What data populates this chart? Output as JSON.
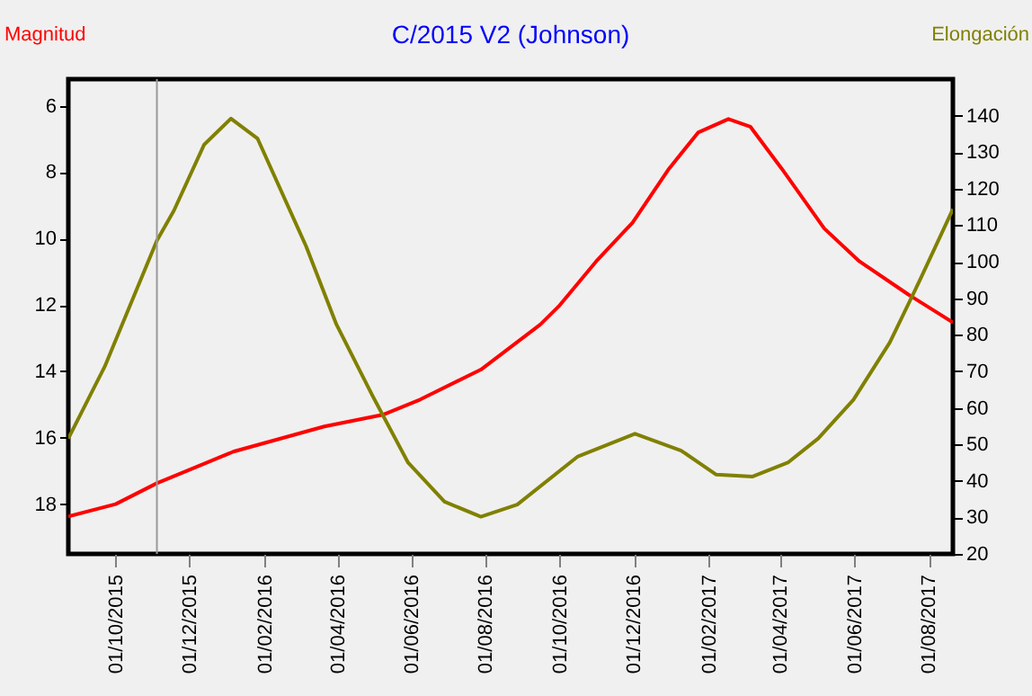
{
  "chart_data": {
    "type": "line",
    "title": "C/2015 V2 (Johnson)",
    "ylabel": "Magnitud",
    "y2label": "Elongación",
    "xlim": [
      "2015-08-23",
      "2017-08-21"
    ],
    "xticks": [
      {
        "value": "2015-10-01",
        "label": "01/10/2015"
      },
      {
        "value": "2015-12-01",
        "label": "01/12/2015"
      },
      {
        "value": "2016-02-01",
        "label": "01/02/2016"
      },
      {
        "value": "2016-04-01",
        "label": "01/04/2016"
      },
      {
        "value": "2016-06-01",
        "label": "01/06/2016"
      },
      {
        "value": "2016-08-01",
        "label": "01/08/2016"
      },
      {
        "value": "2016-10-01",
        "label": "01/10/2016"
      },
      {
        "value": "2016-12-01",
        "label": "01/12/2016"
      },
      {
        "value": "2017-02-01",
        "label": "01/02/2017"
      },
      {
        "value": "2017-04-01",
        "label": "01/04/2017"
      },
      {
        "value": "2017-06-01",
        "label": "01/06/2017"
      },
      {
        "value": "2017-08-01",
        "label": "01/08/2017"
      }
    ],
    "ylim": [
      19.5,
      5.2
    ],
    "yticks": [
      6,
      8,
      10,
      12,
      14,
      16,
      18
    ],
    "y2lim": [
      20,
      150
    ],
    "y2ticks": [
      20,
      30,
      40,
      50,
      60,
      70,
      80,
      90,
      100,
      110,
      120,
      130,
      140
    ],
    "grid": false,
    "series": [
      {
        "color": "#ff0000",
        "x": [
          "2015-08-23",
          "2015-10-01",
          "2015-11-04",
          "2016-01-06",
          "2016-03-21",
          "2016-05-09",
          "2016-06-08",
          "2016-07-28",
          "2016-09-15",
          "2016-09-30",
          "2016-10-31",
          "2016-11-30",
          "2016-12-30",
          "2017-01-23",
          "2017-02-17",
          "2017-03-07",
          "2017-04-02",
          "2017-05-07",
          "2017-06-05",
          "2017-07-15",
          "2017-08-21"
        ],
        "values": [
          18.37,
          18.0,
          17.37,
          16.42,
          15.66,
          15.3,
          14.85,
          13.95,
          12.59,
          12.05,
          10.69,
          9.52,
          7.9,
          6.81,
          6.4,
          6.63,
          7.9,
          9.7,
          10.69,
          11.68,
          12.53
        ]
      },
      {
        "color": "#808000",
        "axis": "y2",
        "x": [
          "2015-08-23",
          "2015-09-22",
          "2015-11-04",
          "2015-11-18",
          "2015-12-13",
          "2016-01-04",
          "2016-01-26",
          "2016-03-06",
          "2016-03-31",
          "2016-04-30",
          "2016-05-29",
          "2016-06-28",
          "2016-07-28",
          "2016-08-27",
          "2016-10-16",
          "2016-12-02",
          "2017-01-09",
          "2017-02-07",
          "2017-03-09",
          "2017-04-07",
          "2017-05-02",
          "2017-05-31",
          "2017-06-30",
          "2017-07-25",
          "2017-08-21"
        ],
        "values": [
          51.6,
          71.3,
          105.8,
          114,
          132.1,
          139.2,
          133.7,
          104.2,
          82.8,
          63.1,
          45,
          34.3,
          30.2,
          33.5,
          46.7,
          52.9,
          48.3,
          41.7,
          41.2,
          45,
          51.6,
          62.2,
          77.9,
          95.1,
          114.4
        ]
      }
    ],
    "ref_lines": [
      {
        "axis": "x",
        "value": "2015-11-04",
        "color": "#999999"
      }
    ]
  }
}
